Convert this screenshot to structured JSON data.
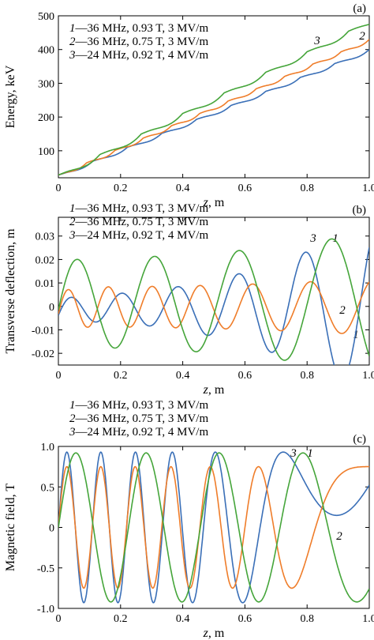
{
  "colors": {
    "series1": "#3a6fb7",
    "series2": "#ef7d2a",
    "series3": "#45a53a"
  },
  "chart_data": [
    {
      "type": "line",
      "panel": "(a)",
      "xlabel": "z, m",
      "ylabel": "Energy, keV",
      "xlim": [
        0,
        1.0
      ],
      "ylim": [
        20,
        500
      ],
      "xticks": [
        "0",
        "0.2",
        "0.4",
        "0.6",
        "0.8",
        "1.0"
      ],
      "yticks": [
        "100",
        "200",
        "300",
        "400",
        "500"
      ],
      "legend": [
        {
          "num": "1",
          "text": "—36 MHz, 0.93 T, 3 MV/m"
        },
        {
          "num": "2",
          "text": "—36 MHz, 0.75 T, 3 MV/m"
        },
        {
          "num": "3",
          "text": "—24 MHz, 0.92 T, 4 MV/m"
        }
      ],
      "series": [
        {
          "id": "1",
          "label": "1",
          "kind": "energy",
          "e0": 28,
          "e1": 400,
          "amp": 9,
          "periods": 9
        },
        {
          "id": "2",
          "label": "2",
          "kind": "energy",
          "e0": 28,
          "e1": 430,
          "amp": 10,
          "periods": 11
        },
        {
          "id": "3",
          "label": "3",
          "kind": "energy",
          "e0": 28,
          "e1": 485,
          "amp": 15,
          "periods": 7.5
        }
      ]
    },
    {
      "type": "line",
      "panel": "(b)",
      "xlabel": "z, m",
      "ylabel": "Transverse deflection, m",
      "xlim": [
        0,
        1.0
      ],
      "ylim": [
        -0.025,
        0.038
      ],
      "xticks": [
        "0",
        "0.2",
        "0.4",
        "0.6",
        "0.8",
        "1.0"
      ],
      "yticks": [
        "-0.02",
        "-0.01",
        "0",
        "0.01",
        "0.02",
        "0.03"
      ],
      "legend": [
        {
          "num": "1",
          "text": "—36 MHz, 0.93 T, 3 MV/m"
        },
        {
          "num": "2",
          "text": "—36 MHz, 0.75 T, 3 MV/m"
        },
        {
          "num": "3",
          "text": "—24 MHz, 0.92 T, 4 MV/m"
        }
      ],
      "series": [
        {
          "id": "1",
          "label": "1",
          "kind": "deflection",
          "a0": 0.0055,
          "a1": 0.036,
          "period": 0.155,
          "offset": -0.0008
        },
        {
          "id": "2",
          "label": "2",
          "kind": "deflection",
          "a0": 0.0085,
          "a1": 0.012,
          "period": 0.122,
          "offset": -0.0002
        },
        {
          "id": "3",
          "label": "3",
          "kind": "deflection",
          "a0": 0.019,
          "a1": 0.03,
          "period": 0.235,
          "offset": 0.0015
        }
      ]
    },
    {
      "type": "line",
      "panel": "(c)",
      "xlabel": "z, m",
      "ylabel": "Magnetic field, T",
      "xlim": [
        0,
        1.0
      ],
      "ylim": [
        -1.0,
        1.0
      ],
      "xticks": [
        "0",
        "0.2",
        "0.4",
        "0.6",
        "0.8",
        "1.0"
      ],
      "yticks": [
        "-1.0",
        "-0.5",
        "0",
        "0.5",
        "1.0"
      ],
      "legend": [
        {
          "num": "1",
          "text": "—36 MHz, 0.93 T, 3 MV/m"
        },
        {
          "num": "2",
          "text": "—36 MHz, 0.75 T, 3 MV/m"
        },
        {
          "num": "3",
          "text": "—24 MHz, 0.92 T, 4 MV/m"
        }
      ],
      "series": [
        {
          "id": "1",
          "label": "1",
          "kind": "field",
          "amp": 0.93,
          "period": 0.109,
          "end_period": 0.185
        },
        {
          "id": "2",
          "label": "2",
          "kind": "field",
          "amp": 0.75,
          "period": 0.109,
          "end_period": 0.16
        },
        {
          "id": "3",
          "label": "3",
          "kind": "field",
          "amp": 0.92,
          "period": 0.225,
          "end_period": 0.26
        }
      ]
    }
  ]
}
